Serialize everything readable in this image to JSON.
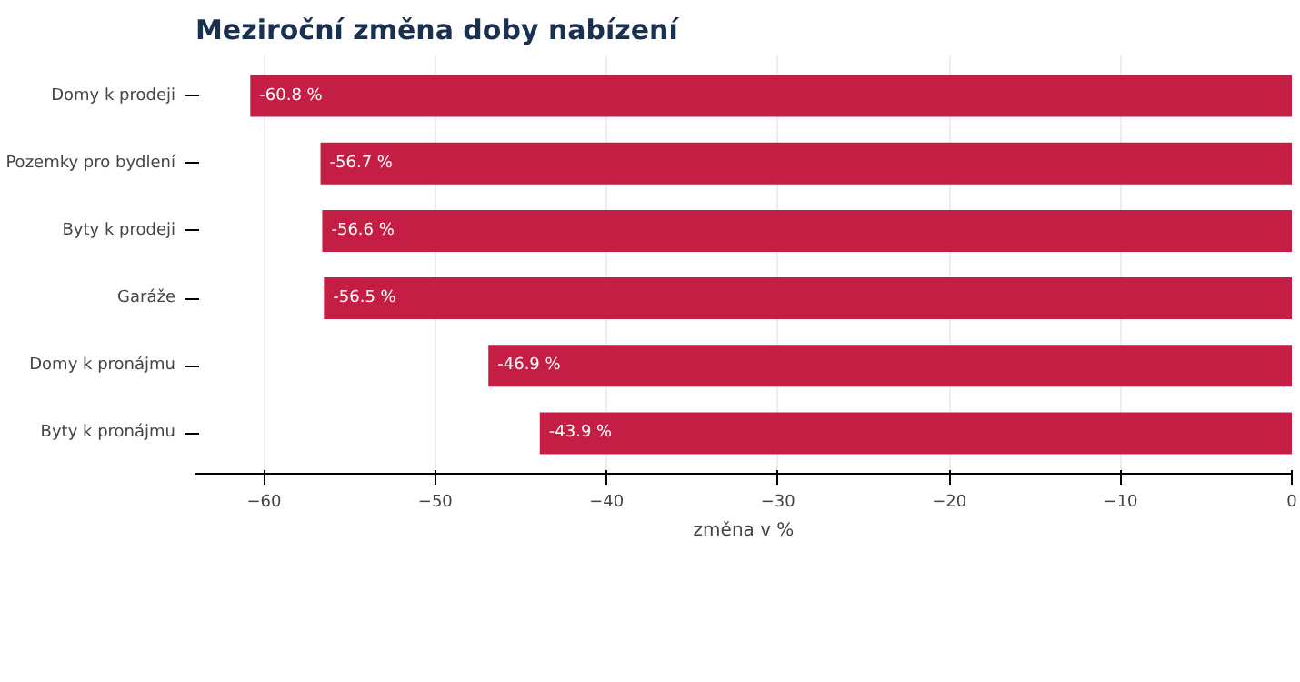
{
  "chart_data": {
    "type": "bar",
    "orientation": "horizontal",
    "title": "Meziroční změna doby nabízení",
    "xlabel": "změna v %",
    "categories": [
      "Domy k prodeji",
      "Pozemky pro bydlení",
      "Byty k prodeji",
      "Garáže",
      "Domy k pronájmu",
      "Byty k pronájmu"
    ],
    "values": [
      -60.8,
      -56.7,
      -56.6,
      -56.5,
      -46.9,
      -43.9
    ],
    "value_labels": [
      "-60.8 %",
      "-56.7 %",
      "-56.6 %",
      "-56.5 %",
      "-46.9 %",
      "-43.9 %"
    ],
    "color": "#c41e45",
    "xlim": [
      -64,
      0
    ],
    "xticks": [
      {
        "value": -60,
        "label": "−60"
      },
      {
        "value": -50,
        "label": "−50"
      },
      {
        "value": -40,
        "label": "−40"
      },
      {
        "value": -30,
        "label": "−30"
      },
      {
        "value": -20,
        "label": "−20"
      },
      {
        "value": -10,
        "label": "−10"
      },
      0
    ],
    "grid": "x"
  }
}
